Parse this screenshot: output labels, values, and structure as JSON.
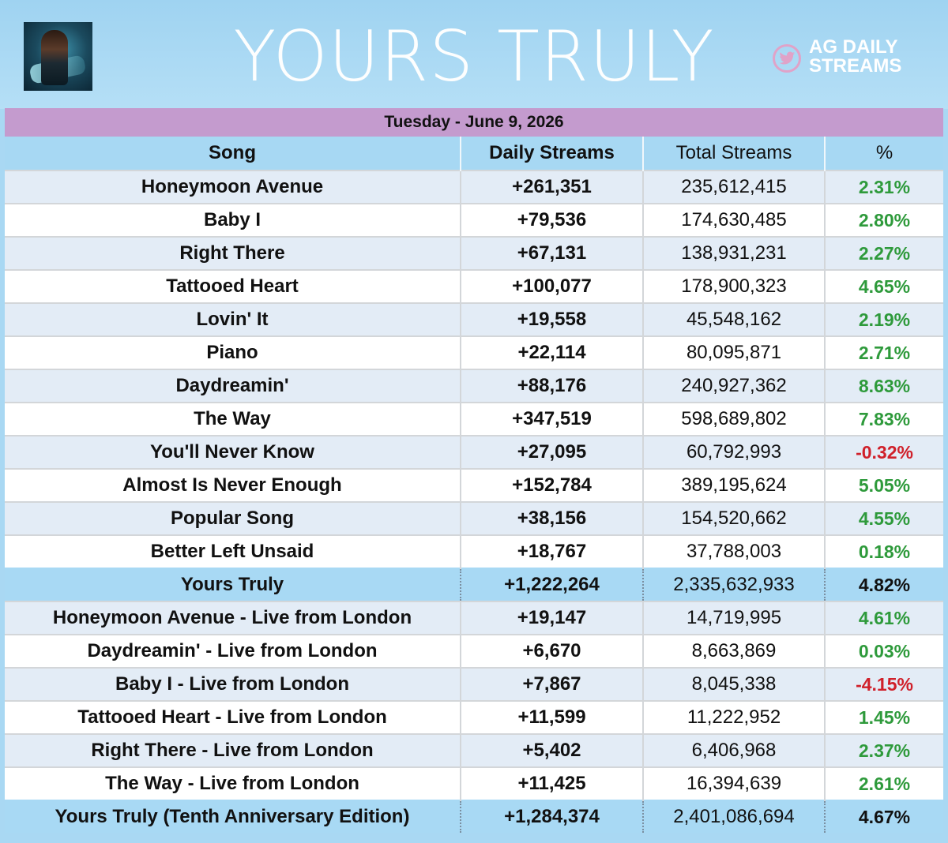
{
  "header": {
    "title": "YOURS TRULY",
    "brand_line1": "AG DAILY",
    "brand_line2": "STREAMS",
    "accent_color": "#e0a3c8"
  },
  "date": "Tuesday - June 9, 2026",
  "table": {
    "columns": [
      "Song",
      "Daily Streams",
      "Total Streams",
      "%"
    ],
    "rows": [
      {
        "song": "Honeymoon Avenue",
        "daily": "+261,351",
        "total": "235,612,415",
        "pct": "2.31%",
        "type": "song"
      },
      {
        "song": "Baby I",
        "daily": "+79,536",
        "total": "174,630,485",
        "pct": "2.80%",
        "type": "song"
      },
      {
        "song": "Right There",
        "daily": "+67,131",
        "total": "138,931,231",
        "pct": "2.27%",
        "type": "song"
      },
      {
        "song": "Tattooed Heart",
        "daily": "+100,077",
        "total": "178,900,323",
        "pct": "4.65%",
        "type": "song"
      },
      {
        "song": "Lovin' It",
        "daily": "+19,558",
        "total": "45,548,162",
        "pct": "2.19%",
        "type": "song"
      },
      {
        "song": "Piano",
        "daily": "+22,114",
        "total": "80,095,871",
        "pct": "2.71%",
        "type": "song"
      },
      {
        "song": "Daydreamin'",
        "daily": "+88,176",
        "total": "240,927,362",
        "pct": "8.63%",
        "type": "song"
      },
      {
        "song": "The Way",
        "daily": "+347,519",
        "total": "598,689,802",
        "pct": "7.83%",
        "type": "song"
      },
      {
        "song": "You'll Never Know",
        "daily": "+27,095",
        "total": "60,792,993",
        "pct": "-0.32%",
        "type": "song"
      },
      {
        "song": "Almost Is Never Enough",
        "daily": "+152,784",
        "total": "389,195,624",
        "pct": "5.05%",
        "type": "song"
      },
      {
        "song": "Popular Song",
        "daily": "+38,156",
        "total": "154,520,662",
        "pct": "4.55%",
        "type": "song"
      },
      {
        "song": "Better Left Unsaid",
        "daily": "+18,767",
        "total": "37,788,003",
        "pct": "0.18%",
        "type": "song"
      },
      {
        "song": "Yours Truly",
        "daily": "+1,222,264",
        "total": "2,335,632,933",
        "pct": "4.82%",
        "type": "total"
      },
      {
        "song": "Honeymoon Avenue - Live from London",
        "daily": "+19,147",
        "total": "14,719,995",
        "pct": "4.61%",
        "type": "song"
      },
      {
        "song": "Daydreamin' - Live from London",
        "daily": "+6,670",
        "total": "8,663,869",
        "pct": "0.03%",
        "type": "song"
      },
      {
        "song": "Baby I - Live from London",
        "daily": "+7,867",
        "total": "8,045,338",
        "pct": "-4.15%",
        "type": "song"
      },
      {
        "song": "Tattooed Heart - Live from London",
        "daily": "+11,599",
        "total": "11,222,952",
        "pct": "1.45%",
        "type": "song"
      },
      {
        "song": "Right There - Live from London",
        "daily": "+5,402",
        "total": "6,406,968",
        "pct": "2.37%",
        "type": "song"
      },
      {
        "song": "The Way - Live from London",
        "daily": "+11,425",
        "total": "16,394,639",
        "pct": "2.61%",
        "type": "song"
      },
      {
        "song": "Yours Truly (Tenth Anniversary Edition)",
        "daily": "+1,284,374",
        "total": "2,401,086,694",
        "pct": "4.67%",
        "type": "total"
      }
    ]
  },
  "colors": {
    "background": "#a9d8f3",
    "date_bar": "#c49bce",
    "positive": "#2e9a3b",
    "negative": "#d0202a",
    "row_alt": "#e3ecf6"
  }
}
